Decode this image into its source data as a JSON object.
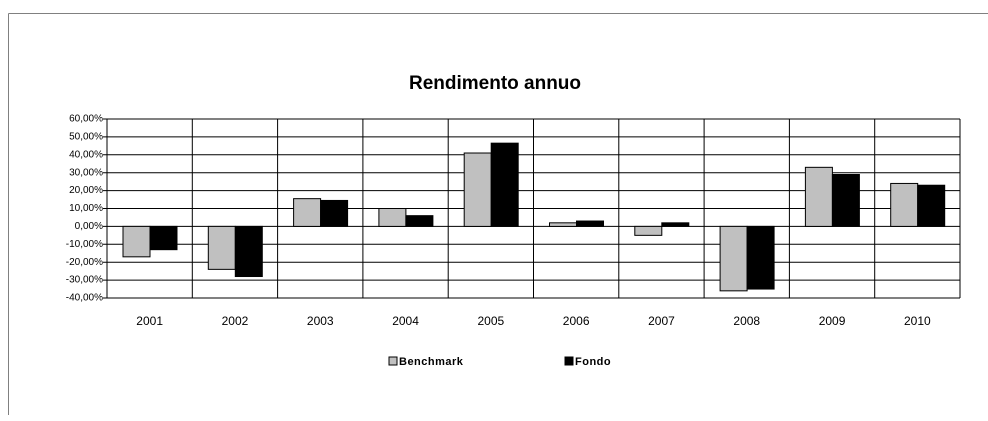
{
  "chart_data": {
    "type": "bar",
    "title": "Rendimento annuo",
    "categories": [
      "2001",
      "2002",
      "2003",
      "2004",
      "2005",
      "2006",
      "2007",
      "2008",
      "2009",
      "2010"
    ],
    "series": [
      {
        "name": "Benchmark",
        "color": "#c0c0c0",
        "values": [
          -17,
          -24,
          15.5,
          10,
          41,
          2,
          -5,
          -36,
          33,
          24
        ]
      },
      {
        "name": "Fondo",
        "color": "#000000",
        "values": [
          -13,
          -28,
          14.5,
          6,
          46.5,
          3,
          2,
          -35,
          29,
          23
        ]
      }
    ],
    "ylim": [
      -40,
      60
    ],
    "yticks": [
      {
        "value": -40,
        "label": "-40,00%"
      },
      {
        "value": -30,
        "label": "-30,00%"
      },
      {
        "value": -20,
        "label": "-20,00%"
      },
      {
        "value": -10,
        "label": "-10,00%"
      },
      {
        "value": 0,
        "label": "0,00%"
      },
      {
        "value": 10,
        "label": "10,00%"
      },
      {
        "value": 20,
        "label": "20,00%"
      },
      {
        "value": 30,
        "label": "30,00%"
      },
      {
        "value": 40,
        "label": "40,00%"
      },
      {
        "value": 50,
        "label": "50,00%"
      },
      {
        "value": 60,
        "label": "60,00%"
      }
    ],
    "grid": true,
    "legend": "bottom"
  }
}
